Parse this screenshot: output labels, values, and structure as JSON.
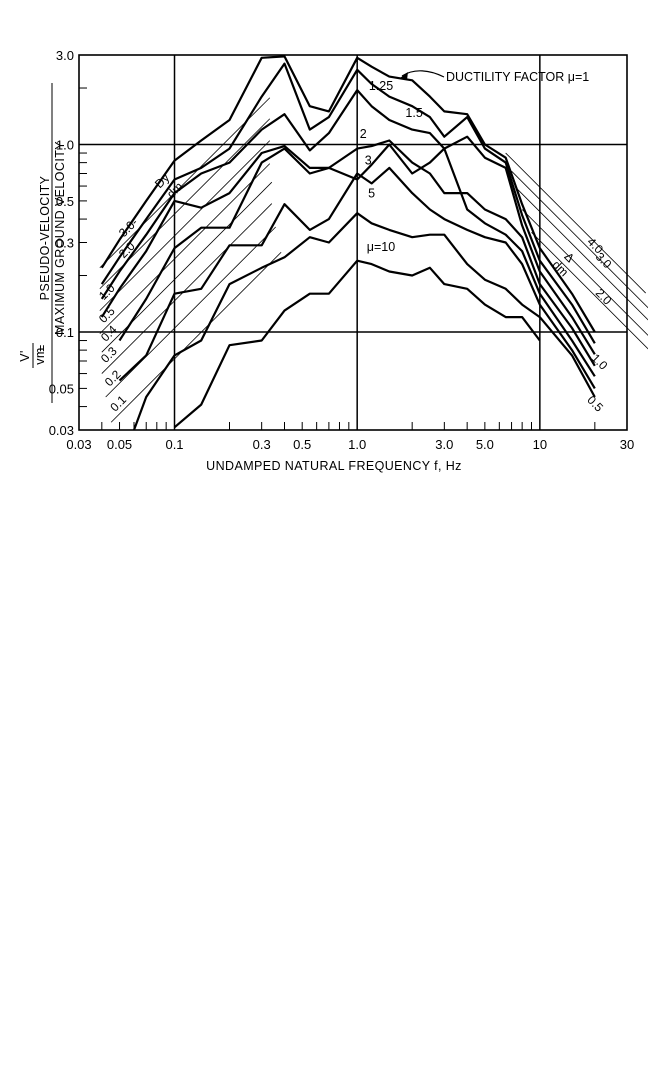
{
  "chart_data": {
    "type": "line",
    "x_scale": "log",
    "y_scale": "log",
    "xlim": [
      0.03,
      30
    ],
    "ylim": [
      0.03,
      3.0
    ],
    "xlabel": "UNDAMPED NATURAL FREQUENCY f, Hz",
    "ylabel_left": "V'",
    "ylabel_left_sub": "vm",
    "ylabel_equals": "=",
    "ylabel_top": "PSEUDO-VELOCITY",
    "ylabel_bottom": "MAXIMUM GROUND VELOCITY",
    "x_ticks": [
      {
        "value": 0.03,
        "label": "0.03"
      },
      {
        "value": 0.05,
        "label": "0.05"
      },
      {
        "value": 0.1,
        "label": "0.1"
      },
      {
        "value": 0.3,
        "label": "0.3"
      },
      {
        "value": 0.5,
        "label": "0.5"
      },
      {
        "value": 1.0,
        "label": "1.0"
      },
      {
        "value": 3.0,
        "label": "3.0"
      },
      {
        "value": 5.0,
        "label": "5.0"
      },
      {
        "value": 10,
        "label": "10"
      },
      {
        "value": 30,
        "label": "30"
      }
    ],
    "y_ticks": [
      {
        "value": 3.0,
        "label": "3.0"
      },
      {
        "value": 1.0,
        "label": "1.0"
      },
      {
        "value": 0.5,
        "label": "0.5"
      },
      {
        "value": 0.3,
        "label": "0.3"
      },
      {
        "value": 0.1,
        "label": "0.1"
      },
      {
        "value": 0.05,
        "label": "0.05"
      },
      {
        "value": 0.03,
        "label": "0.03"
      }
    ],
    "grid_major_x": [
      0.1,
      1.0,
      10
    ],
    "grid_major_y": [
      1.0,
      0.1
    ],
    "grid": "major lines only",
    "annotation": "DUCTILITY FACTOR μ=1",
    "series": [
      {
        "name": "1",
        "label": "",
        "x": [
          0.04,
          0.05,
          0.07,
          0.1,
          0.14,
          0.2,
          0.3,
          0.4,
          0.55,
          0.7,
          1.0,
          1.2,
          1.5,
          2.0,
          2.5,
          3.0,
          4.0,
          5.0,
          6.5,
          8.0,
          10,
          15,
          20
        ],
        "y": [
          0.22,
          0.31,
          0.5,
          0.82,
          1.05,
          1.35,
          2.9,
          2.95,
          1.6,
          1.5,
          2.9,
          2.6,
          2.3,
          2.2,
          1.8,
          1.5,
          1.45,
          1.0,
          0.85,
          0.48,
          0.28,
          0.16,
          0.1
        ]
      },
      {
        "name": "1.25",
        "label": "1.25",
        "x": [
          0.04,
          0.05,
          0.07,
          0.1,
          0.14,
          0.2,
          0.3,
          0.4,
          0.55,
          0.7,
          1.0,
          1.2,
          1.5,
          2.0,
          2.5,
          3.0,
          4.0,
          5.0,
          6.5,
          8.0,
          10,
          15,
          20
        ],
        "y": [
          0.18,
          0.25,
          0.4,
          0.65,
          0.75,
          0.95,
          1.8,
          2.7,
          1.2,
          1.4,
          2.5,
          2.1,
          1.8,
          1.6,
          1.4,
          1.1,
          1.4,
          0.95,
          0.8,
          0.42,
          0.24,
          0.14,
          0.087
        ]
      },
      {
        "name": "1.5",
        "label": "1.5",
        "x": [
          0.04,
          0.05,
          0.07,
          0.1,
          0.14,
          0.2,
          0.3,
          0.4,
          0.55,
          0.7,
          1.0,
          1.2,
          1.5,
          2.0,
          2.5,
          3.0,
          4.0,
          5.0,
          6.5,
          8.0,
          10,
          15,
          20
        ],
        "y": [
          0.15,
          0.21,
          0.33,
          0.55,
          0.7,
          0.8,
          1.2,
          1.45,
          0.93,
          1.15,
          1.95,
          1.6,
          1.35,
          1.2,
          1.15,
          0.95,
          1.1,
          0.85,
          0.75,
          0.37,
          0.21,
          0.12,
          0.076
        ]
      },
      {
        "name": "2",
        "label": "2",
        "x": [
          0.04,
          0.05,
          0.07,
          0.1,
          0.14,
          0.2,
          0.3,
          0.4,
          0.55,
          0.7,
          1.0,
          1.2,
          1.5,
          2.0,
          2.5,
          3.0,
          4.0,
          5.0,
          6.5,
          8.0,
          10,
          15,
          20
        ],
        "y": [
          0.12,
          0.17,
          0.27,
          0.5,
          0.46,
          0.55,
          0.9,
          0.98,
          0.75,
          0.75,
          0.95,
          0.98,
          1.05,
          0.8,
          0.7,
          0.55,
          0.55,
          0.45,
          0.4,
          0.32,
          0.18,
          0.105,
          0.066
        ]
      },
      {
        "name": "3",
        "label": "3",
        "x": [
          0.05,
          0.07,
          0.1,
          0.14,
          0.2,
          0.3,
          0.4,
          0.55,
          0.7,
          1.0,
          1.2,
          1.5,
          2.0,
          2.5,
          3.0,
          4.0,
          5.0,
          6.5,
          8.0,
          10,
          15,
          20
        ],
        "y": [
          0.09,
          0.15,
          0.28,
          0.36,
          0.36,
          0.8,
          0.95,
          0.7,
          0.75,
          0.65,
          0.78,
          1.0,
          0.7,
          0.8,
          0.95,
          0.45,
          0.38,
          0.33,
          0.27,
          0.16,
          0.09,
          0.058
        ]
      },
      {
        "name": "5",
        "label": "5",
        "x": [
          0.05,
          0.07,
          0.1,
          0.14,
          0.2,
          0.3,
          0.4,
          0.55,
          0.7,
          1.0,
          1.2,
          1.5,
          2.0,
          2.5,
          3.0,
          4.0,
          5.0,
          6.5,
          8.0,
          10,
          15,
          20
        ],
        "y": [
          0.055,
          0.075,
          0.16,
          0.17,
          0.29,
          0.29,
          0.48,
          0.35,
          0.4,
          0.7,
          0.62,
          0.75,
          0.55,
          0.45,
          0.4,
          0.35,
          0.32,
          0.3,
          0.23,
          0.14,
          0.08,
          0.05
        ]
      },
      {
        "name": "10",
        "label": "μ=10",
        "x": [
          0.06,
          0.07,
          0.1,
          0.14,
          0.2,
          0.3,
          0.4,
          0.55,
          0.7,
          1.0,
          1.2,
          1.5,
          2.0,
          2.5,
          3.0,
          4.0,
          5.0,
          6.5,
          8.0,
          10,
          15,
          20
        ],
        "y": [
          0.03,
          0.045,
          0.075,
          0.09,
          0.18,
          0.22,
          0.25,
          0.32,
          0.3,
          0.43,
          0.38,
          0.35,
          0.32,
          0.33,
          0.33,
          0.23,
          0.19,
          0.17,
          0.14,
          0.12,
          0.075,
          0.045
        ]
      },
      {
        "name": "0.1",
        "label": "",
        "x": [
          0.1,
          0.14,
          0.2,
          0.3,
          0.4,
          0.55,
          0.7,
          1.0,
          1.2,
          1.5,
          2.0,
          2.5,
          3.0,
          4.0,
          5.0,
          6.5,
          8.0,
          10
        ],
        "y": [
          0.031,
          0.041,
          0.085,
          0.09,
          0.13,
          0.16,
          0.16,
          0.24,
          0.23,
          0.21,
          0.2,
          0.22,
          0.18,
          0.17,
          0.14,
          0.12,
          0.12,
          0.09
        ]
      }
    ],
    "diagonal_scale_left": {
      "label_head": "Dy",
      "label_den": "dm",
      "values": [
        "3.0-",
        "2.0",
        "1.0",
        "0.5",
        "0.4",
        "0.3",
        "0.2",
        "0.1"
      ]
    },
    "diagonal_scale_right": {
      "label_head": "Δ",
      "label_den": "dm",
      "values": [
        "4.0",
        "3.0",
        "2.0",
        "1.0",
        "0.5"
      ]
    }
  }
}
